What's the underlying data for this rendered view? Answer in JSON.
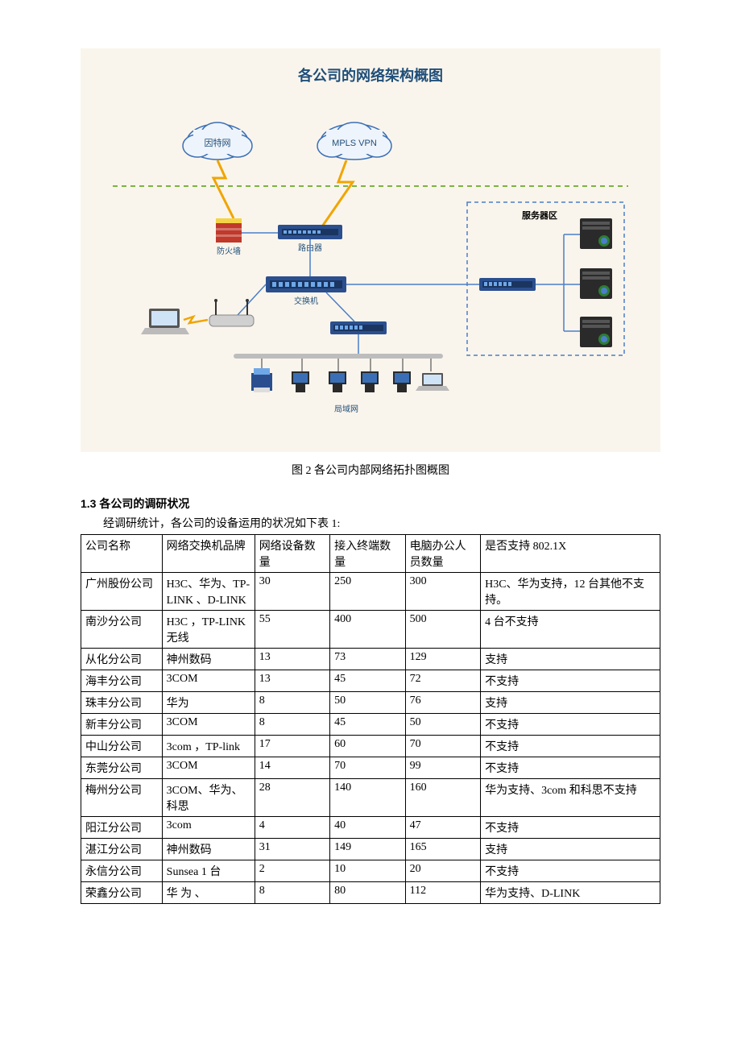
{
  "diagram": {
    "title": "各公司的网络架构概图",
    "bg_color": "#faf5ec",
    "title_color": "#1f4e79",
    "labels": {
      "internet": "因特网",
      "mpls": "MPLS VPN",
      "firewall": "防火墙",
      "router": "路由器",
      "switch": "交换机",
      "server_zone": "服务器区",
      "lan": "局域网"
    },
    "colors": {
      "cloud_stroke": "#3b6fb5",
      "cloud_fill": "#eef4fb",
      "lightning": "#f0a500",
      "dashed_green": "#7cb342",
      "dashed_blue": "#4a7ec9",
      "device_blue": "#2b4f8e",
      "device_dark": "#2a2a2a",
      "firewall_red": "#c0392b",
      "firewall_yellow": "#f5d347",
      "wire": "#4a7ec9",
      "gray_bar": "#bdbdbd",
      "label_blue": "#1f4e79"
    }
  },
  "caption": "图 2  各公司内部网络拓扑图概图",
  "section_heading": "1.3 各公司的调研状况",
  "intro_line": "经调研统计，各公司的设备运用的状况如下表 1:",
  "table": {
    "columns": [
      "公司名称",
      "网络交换机品牌",
      "网络设备数量",
      "接入终端数量",
      "电脑办公人员数量",
      "是否支持 802.1X"
    ],
    "rows": [
      [
        "广州股份公司",
        "H3C、华为、TP-LINK 、D-LINK",
        "30",
        "250",
        "300",
        "H3C、华为支持，12 台其他不支持。"
      ],
      [
        "南沙分公司",
        "H3C ，TP-LINK 无线",
        "55",
        "400",
        "500",
        "4 台不支持"
      ],
      [
        "从化分公司",
        "神州数码",
        "13",
        "73",
        "129",
        "支持"
      ],
      [
        "海丰分公司",
        "3COM",
        "13",
        "45",
        "72",
        "不支持"
      ],
      [
        "珠丰分公司",
        "华为",
        "8",
        "50",
        "76",
        "支持"
      ],
      [
        "新丰分公司",
        "3COM",
        "8",
        "45",
        "50",
        "不支持"
      ],
      [
        "中山分公司",
        "3com ，TP-link",
        "17",
        "60",
        "70",
        "不支持"
      ],
      [
        "东莞分公司",
        "3COM",
        "14",
        "70",
        "99",
        "不支持"
      ],
      [
        "梅州分公司",
        "3COM、华为、科思",
        "28",
        "140",
        "160",
        "华为支持、3com 和科思不支持"
      ],
      [
        "阳江分公司",
        "3com",
        "4",
        "40",
        "47",
        "不支持"
      ],
      [
        "湛江分公司",
        "神州数码",
        "31",
        "149",
        "165",
        "支持"
      ],
      [
        "永信分公司",
        "Sunsea 1 台",
        "2",
        "10",
        "20",
        "不支持"
      ],
      [
        "荣鑫分公司",
        "华 为 、",
        "8",
        "80",
        "112",
        "华为支持、D-LINK"
      ]
    ]
  }
}
